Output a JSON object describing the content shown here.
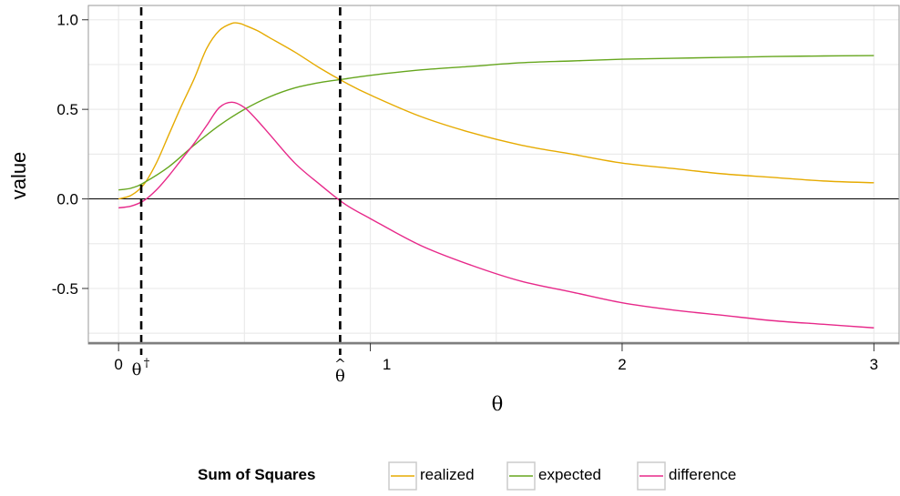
{
  "chart_data": {
    "type": "line",
    "title": "",
    "xlabel": "θ",
    "ylabel": "value",
    "xlim": [
      -0.12,
      3.1
    ],
    "ylim": [
      -0.8,
      1.08
    ],
    "x_ticks": [
      {
        "value": 0,
        "label": "0"
      },
      {
        "value": 1,
        "label": "1"
      },
      {
        "value": 2,
        "label": "2"
      },
      {
        "value": 3,
        "label": "3"
      }
    ],
    "y_ticks": [
      {
        "value": 1.0,
        "label": "1.0"
      },
      {
        "value": 0.5,
        "label": "0.5"
      },
      {
        "value": 0.0,
        "label": "0.0"
      },
      {
        "value": -0.5,
        "label": "-0.5"
      }
    ],
    "grid": true,
    "zero_line": 0,
    "vlines": [
      {
        "x": 0.09,
        "label": "θ",
        "sup": "†",
        "style": "dashed"
      },
      {
        "x": 0.88,
        "label": "θ",
        "accent": "^",
        "style": "dashed"
      }
    ],
    "legend": {
      "title": "Sum of Squares",
      "placement": "bottom"
    },
    "series": [
      {
        "name": "realized",
        "color": "#E6AB02",
        "x": [
          0,
          0.05,
          0.1,
          0.15,
          0.2,
          0.25,
          0.3,
          0.35,
          0.4,
          0.45,
          0.48,
          0.5,
          0.55,
          0.6,
          0.7,
          0.8,
          0.9,
          1.0,
          1.2,
          1.4,
          1.6,
          1.8,
          2.0,
          2.2,
          2.4,
          2.6,
          2.8,
          3.0
        ],
        "values": [
          0.0,
          0.02,
          0.08,
          0.2,
          0.36,
          0.52,
          0.67,
          0.84,
          0.94,
          0.98,
          0.98,
          0.97,
          0.94,
          0.9,
          0.82,
          0.73,
          0.65,
          0.58,
          0.46,
          0.37,
          0.3,
          0.25,
          0.2,
          0.17,
          0.14,
          0.12,
          0.1,
          0.09
        ]
      },
      {
        "name": "expected",
        "color": "#66A61E",
        "x": [
          0,
          0.05,
          0.1,
          0.2,
          0.3,
          0.4,
          0.5,
          0.6,
          0.7,
          0.8,
          0.9,
          1.0,
          1.2,
          1.4,
          1.6,
          1.8,
          2.0,
          2.2,
          2.4,
          2.6,
          2.8,
          3.0
        ],
        "values": [
          0.05,
          0.06,
          0.09,
          0.18,
          0.3,
          0.41,
          0.5,
          0.57,
          0.62,
          0.65,
          0.67,
          0.69,
          0.72,
          0.74,
          0.76,
          0.77,
          0.78,
          0.785,
          0.79,
          0.795,
          0.798,
          0.8
        ]
      },
      {
        "name": "difference",
        "color": "#E7298A",
        "x": [
          0,
          0.05,
          0.1,
          0.15,
          0.2,
          0.25,
          0.3,
          0.35,
          0.4,
          0.45,
          0.5,
          0.55,
          0.6,
          0.7,
          0.8,
          0.9,
          1.0,
          1.2,
          1.4,
          1.6,
          1.8,
          2.0,
          2.2,
          2.4,
          2.6,
          2.8,
          3.0
        ],
        "values": [
          -0.05,
          -0.04,
          -0.01,
          0.05,
          0.13,
          0.22,
          0.31,
          0.41,
          0.51,
          0.54,
          0.51,
          0.44,
          0.36,
          0.2,
          0.08,
          -0.03,
          -0.11,
          -0.26,
          -0.37,
          -0.46,
          -0.52,
          -0.58,
          -0.62,
          -0.65,
          -0.68,
          -0.7,
          -0.72
        ]
      }
    ]
  }
}
